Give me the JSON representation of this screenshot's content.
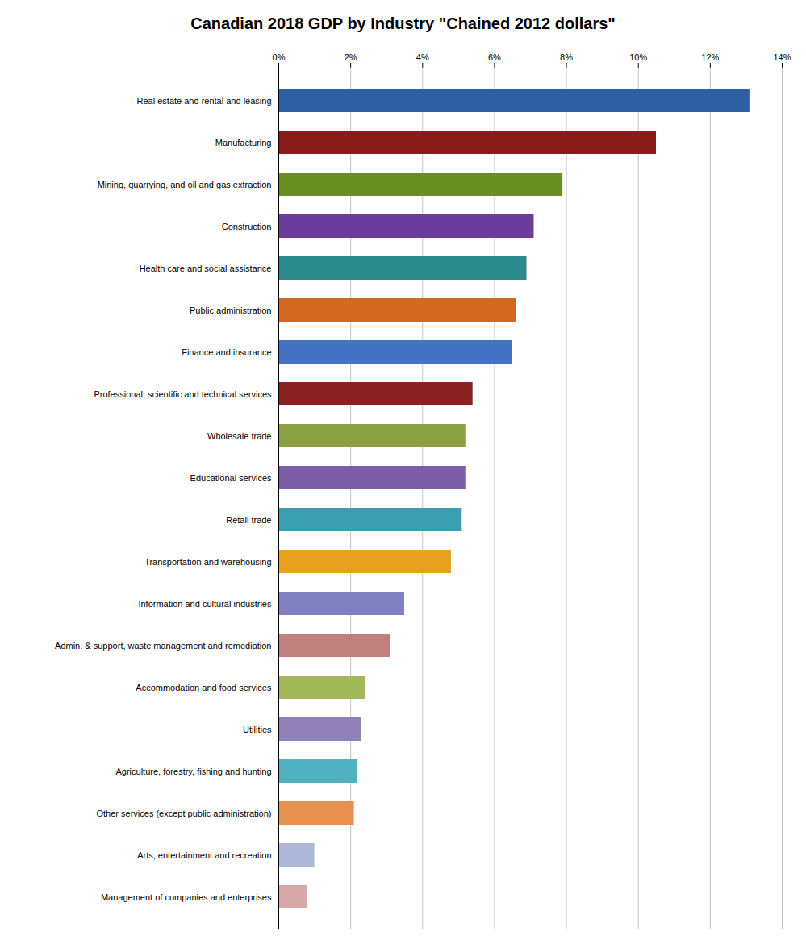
{
  "chart_data": {
    "type": "bar",
    "orientation": "horizontal",
    "title": "Canadian 2018 GDP by Industry \"Chained 2012 dollars\"",
    "categories": [
      "Real estate and rental and leasing",
      "Manufacturing",
      "Mining, quarrying, and oil and gas extraction",
      "Construction",
      "Health care and social assistance",
      "Public administration",
      "Finance and insurance",
      "Professional, scientific and technical services",
      "Wholesale trade",
      "Educational services",
      "Retail trade",
      "Transportation and warehousing",
      "Information and cultural industries",
      "Admin. & support, waste management and remediation",
      "Accommodation and food services",
      "Utilities",
      "Agriculture, forestry, fishing and hunting",
      "Other services (except public administration)",
      "Arts, entertainment and recreation",
      "Management of companies and enterprises"
    ],
    "values": [
      13.1,
      10.5,
      7.9,
      7.1,
      6.9,
      6.6,
      6.5,
      5.4,
      5.2,
      5.2,
      5.1,
      4.8,
      3.5,
      3.1,
      2.4,
      2.3,
      2.2,
      2.1,
      1.0,
      0.8
    ],
    "colors": [
      "#2E5FA3",
      "#8B1A1A",
      "#6B8E23",
      "#6A3D9A",
      "#2E8B8B",
      "#D2691E",
      "#4472C4",
      "#8B2020",
      "#8BA040",
      "#7B5EA7",
      "#3AA0B0",
      "#E8A020",
      "#8080C0",
      "#C08080",
      "#A0B858",
      "#9080B8",
      "#50B0C0",
      "#E89050",
      "#B0B8D8",
      "#D8A8A8"
    ],
    "xlim": [
      0,
      14
    ],
    "xticks": [
      {
        "value": 0,
        "label": "0%"
      },
      {
        "value": 2,
        "label": "2%"
      },
      {
        "value": 4,
        "label": "4%"
      },
      {
        "value": 6,
        "label": "6%"
      },
      {
        "value": 8,
        "label": "8%"
      },
      {
        "value": 10,
        "label": "10%"
      },
      {
        "value": 12,
        "label": "12%"
      },
      {
        "value": 14,
        "label": "14%"
      }
    ],
    "grid": true
  }
}
